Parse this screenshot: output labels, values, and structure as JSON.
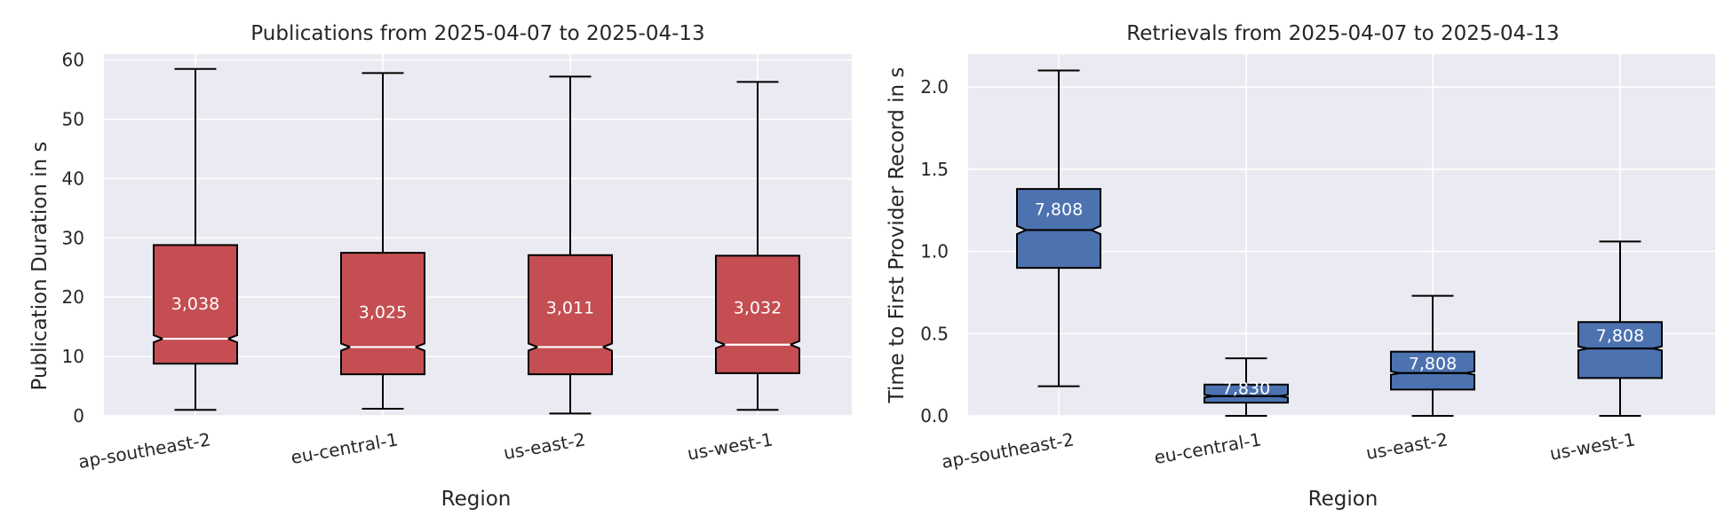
{
  "chart_data": [
    {
      "type": "boxplot",
      "title": "Publications from 2025-04-07 to 2025-04-13",
      "xlabel": "Region",
      "ylabel": "Publication Duration in s",
      "categories": [
        "ap-southeast-2",
        "eu-central-1",
        "us-east-2",
        "us-west-1"
      ],
      "ylim": [
        0,
        61
      ],
      "yticks": [
        "0",
        "10",
        "20",
        "30",
        "40",
        "50",
        "60"
      ],
      "ytick_values": [
        0,
        10,
        20,
        30,
        40,
        50,
        60
      ],
      "notched": true,
      "color": "#c44e52",
      "median_color": "#ffffff",
      "grid": true,
      "boxes": [
        {
          "category": "ap-southeast-2",
          "whislo": 1.0,
          "q1": 8.8,
          "med": 13.0,
          "q3": 28.8,
          "whishi": 58.5,
          "notch": 0.6,
          "count": "3,038",
          "count_at": 19.0
        },
        {
          "category": "eu-central-1",
          "whislo": 1.2,
          "q1": 7.0,
          "med": 11.6,
          "q3": 27.5,
          "whishi": 57.8,
          "notch": 0.6,
          "count": "3,025",
          "count_at": 17.6
        },
        {
          "category": "us-east-2",
          "whislo": 0.4,
          "q1": 7.0,
          "med": 11.6,
          "q3": 27.1,
          "whishi": 57.2,
          "notch": 0.6,
          "count": "3,011",
          "count_at": 18.3
        },
        {
          "category": "us-west-1",
          "whislo": 1.0,
          "q1": 7.2,
          "med": 12.0,
          "q3": 27.0,
          "whishi": 56.3,
          "notch": 0.6,
          "count": "3,032",
          "count_at": 18.3
        }
      ]
    },
    {
      "type": "boxplot",
      "title": "Retrievals from 2025-04-07 to 2025-04-13",
      "xlabel": "Region",
      "ylabel": "Time to First Provider Record in s",
      "categories": [
        "ap-southeast-2",
        "eu-central-1",
        "us-east-2",
        "us-west-1"
      ],
      "ylim": [
        0,
        2.2
      ],
      "yticks": [
        "0.0",
        "0.5",
        "1.0",
        "1.5",
        "2.0"
      ],
      "ytick_values": [
        0,
        0.5,
        1.0,
        1.5,
        2.0
      ],
      "notched": true,
      "color": "#4c72b0",
      "median_color": "#000000",
      "grid": true,
      "boxes": [
        {
          "category": "ap-southeast-2",
          "whislo": 0.18,
          "q1": 0.9,
          "med": 1.13,
          "q3": 1.38,
          "whishi": 2.1,
          "notch": 0.025,
          "count": "7,808",
          "count_at": 1.26
        },
        {
          "category": "eu-central-1",
          "whislo": 0.0,
          "q1": 0.08,
          "med": 0.12,
          "q3": 0.19,
          "whishi": 0.35,
          "notch": 0.008,
          "count": "7,830",
          "count_at": 0.17
        },
        {
          "category": "us-east-2",
          "whislo": 0.0,
          "q1": 0.16,
          "med": 0.26,
          "q3": 0.39,
          "whishi": 0.73,
          "notch": 0.01,
          "count": "7,808",
          "count_at": 0.32
        },
        {
          "category": "us-west-1",
          "whislo": 0.0,
          "q1": 0.23,
          "med": 0.41,
          "q3": 0.57,
          "whishi": 1.06,
          "notch": 0.012,
          "count": "7,808",
          "count_at": 0.49
        }
      ]
    }
  ]
}
